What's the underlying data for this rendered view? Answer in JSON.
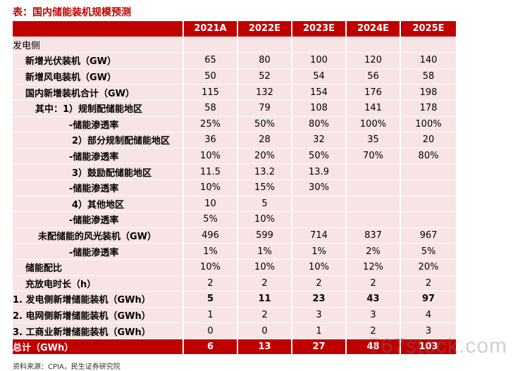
{
  "title": "表：国内储能装机规模预测",
  "columns": [
    "",
    "2021A",
    "2022E",
    "2023E",
    "2024E",
    "2025E"
  ],
  "rows": [
    {
      "label": "发电侧",
      "indent": 0,
      "bold_label": false,
      "bold_values": false,
      "values": [
        "",
        "",
        "",
        "",
        ""
      ]
    },
    {
      "label": "新增光伏装机（GW）",
      "indent": 1,
      "bold_label": true,
      "bold_values": false,
      "values": [
        "65",
        "80",
        "100",
        "120",
        "140"
      ]
    },
    {
      "label": "新增风电装机（GW）",
      "indent": 1,
      "bold_label": true,
      "bold_values": false,
      "values": [
        "50",
        "52",
        "54",
        "56",
        "58"
      ]
    },
    {
      "label": "国内新增装机合计（GW）",
      "indent": 1,
      "bold_label": true,
      "bold_values": false,
      "values": [
        "115",
        "132",
        "154",
        "176",
        "198"
      ]
    },
    {
      "label": "其中：1）规制配储能地区",
      "indent": 2,
      "bold_label": true,
      "bold_values": false,
      "values": [
        "58",
        "79",
        "108",
        "141",
        "178"
      ]
    },
    {
      "label": "-储能渗透率",
      "indent": 4,
      "bold_label": true,
      "bold_values": false,
      "values": [
        "25%",
        "50%",
        "80%",
        "100%",
        "100%"
      ]
    },
    {
      "label": "2）部分规制配储能地区",
      "indent": 5,
      "bold_label": true,
      "bold_values": false,
      "values": [
        "36",
        "28",
        "32",
        "35",
        "20"
      ]
    },
    {
      "label": "-储能渗透率",
      "indent": 4,
      "bold_label": true,
      "bold_values": false,
      "values": [
        "10%",
        "20%",
        "50%",
        "70%",
        "80%"
      ]
    },
    {
      "label": "3）鼓励配储能地区",
      "indent": 5,
      "bold_label": true,
      "bold_values": false,
      "values": [
        "11.5",
        "13.2",
        "13.9",
        "",
        ""
      ]
    },
    {
      "label": "-储能渗透率",
      "indent": 4,
      "bold_label": true,
      "bold_values": false,
      "values": [
        "10%",
        "15%",
        "30%",
        "",
        ""
      ]
    },
    {
      "label": "4）其他地区",
      "indent": 5,
      "bold_label": true,
      "bold_values": false,
      "values": [
        "10",
        "5",
        "",
        "",
        ""
      ]
    },
    {
      "label": "-储能渗透率",
      "indent": 4,
      "bold_label": true,
      "bold_values": false,
      "values": [
        "5%",
        "10%",
        "",
        "",
        ""
      ]
    },
    {
      "label": "未配储能的风光装机（GW）",
      "indent": 3,
      "bold_label": true,
      "bold_values": false,
      "values": [
        "496",
        "599",
        "714",
        "837",
        "967"
      ]
    },
    {
      "label": "-储能渗透率",
      "indent": 4,
      "bold_label": true,
      "bold_values": false,
      "values": [
        "1%",
        "1%",
        "1%",
        "2%",
        "5%"
      ]
    },
    {
      "label": "储能配比",
      "indent": 1,
      "bold_label": true,
      "bold_values": false,
      "values": [
        "10%",
        "10%",
        "10%",
        "12%",
        "20%"
      ]
    },
    {
      "label": "充放电时长（h）",
      "indent": 1,
      "bold_label": true,
      "bold_values": false,
      "values": [
        "2",
        "2",
        "2",
        "2",
        "2"
      ]
    },
    {
      "label": "1. 发电侧新增储能装机（GWh）",
      "indent": 0,
      "bold_label": true,
      "bold_values": true,
      "values": [
        "5",
        "11",
        "23",
        "43",
        "97"
      ]
    },
    {
      "label": "2. 电网侧新增储能装机（GWh）",
      "indent": 0,
      "bold_label": true,
      "bold_values": false,
      "values": [
        "1",
        "2",
        "3",
        "3",
        "4"
      ]
    },
    {
      "label": "3. 工商业新增储能装机（GWh）",
      "indent": 0,
      "bold_label": true,
      "bold_values": false,
      "values": [
        "0",
        "0",
        "1",
        "2",
        "3"
      ]
    }
  ],
  "total": {
    "label": "总计（GWh）",
    "values": [
      "6",
      "13",
      "27",
      "48",
      "103"
    ]
  },
  "source": "资料来源：CPIA，民生证券研究院",
  "watermark": "767stock.com",
  "colors": {
    "header": "#c00000",
    "body": "#f8e4e4"
  }
}
